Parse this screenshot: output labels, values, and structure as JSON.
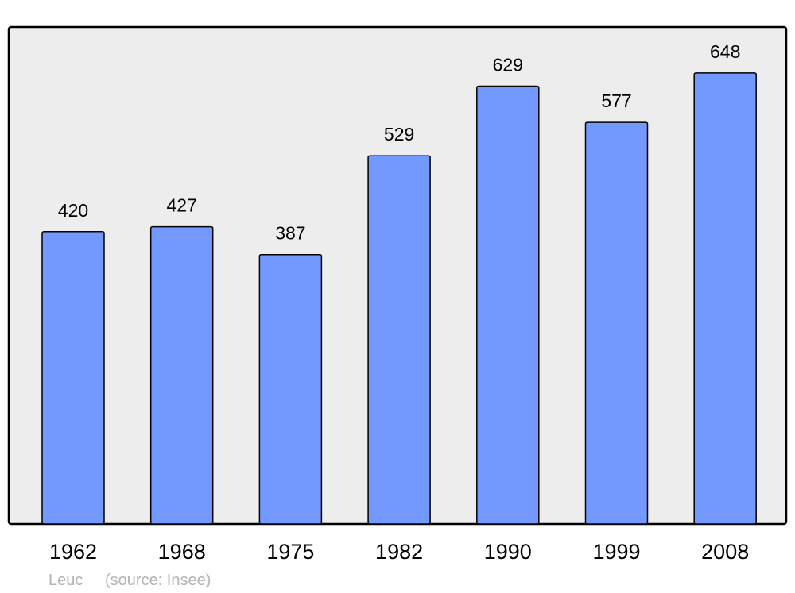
{
  "chart_data": {
    "type": "bar",
    "title": "",
    "xlabel": "",
    "ylabel": "",
    "categories": [
      "1962",
      "1968",
      "1975",
      "1982",
      "1990",
      "1999",
      "2008"
    ],
    "values": [
      420,
      427,
      387,
      529,
      629,
      577,
      648
    ],
    "ylim": [
      0,
      714
    ],
    "grid": false,
    "data_labels": true,
    "colors": {
      "bar": "#7399ff",
      "plot_background": "#ededed",
      "border": "#000000",
      "footer_text": "#b3b3b3"
    }
  },
  "footer": {
    "place": "Leuc",
    "source": "(source: Insee)"
  }
}
